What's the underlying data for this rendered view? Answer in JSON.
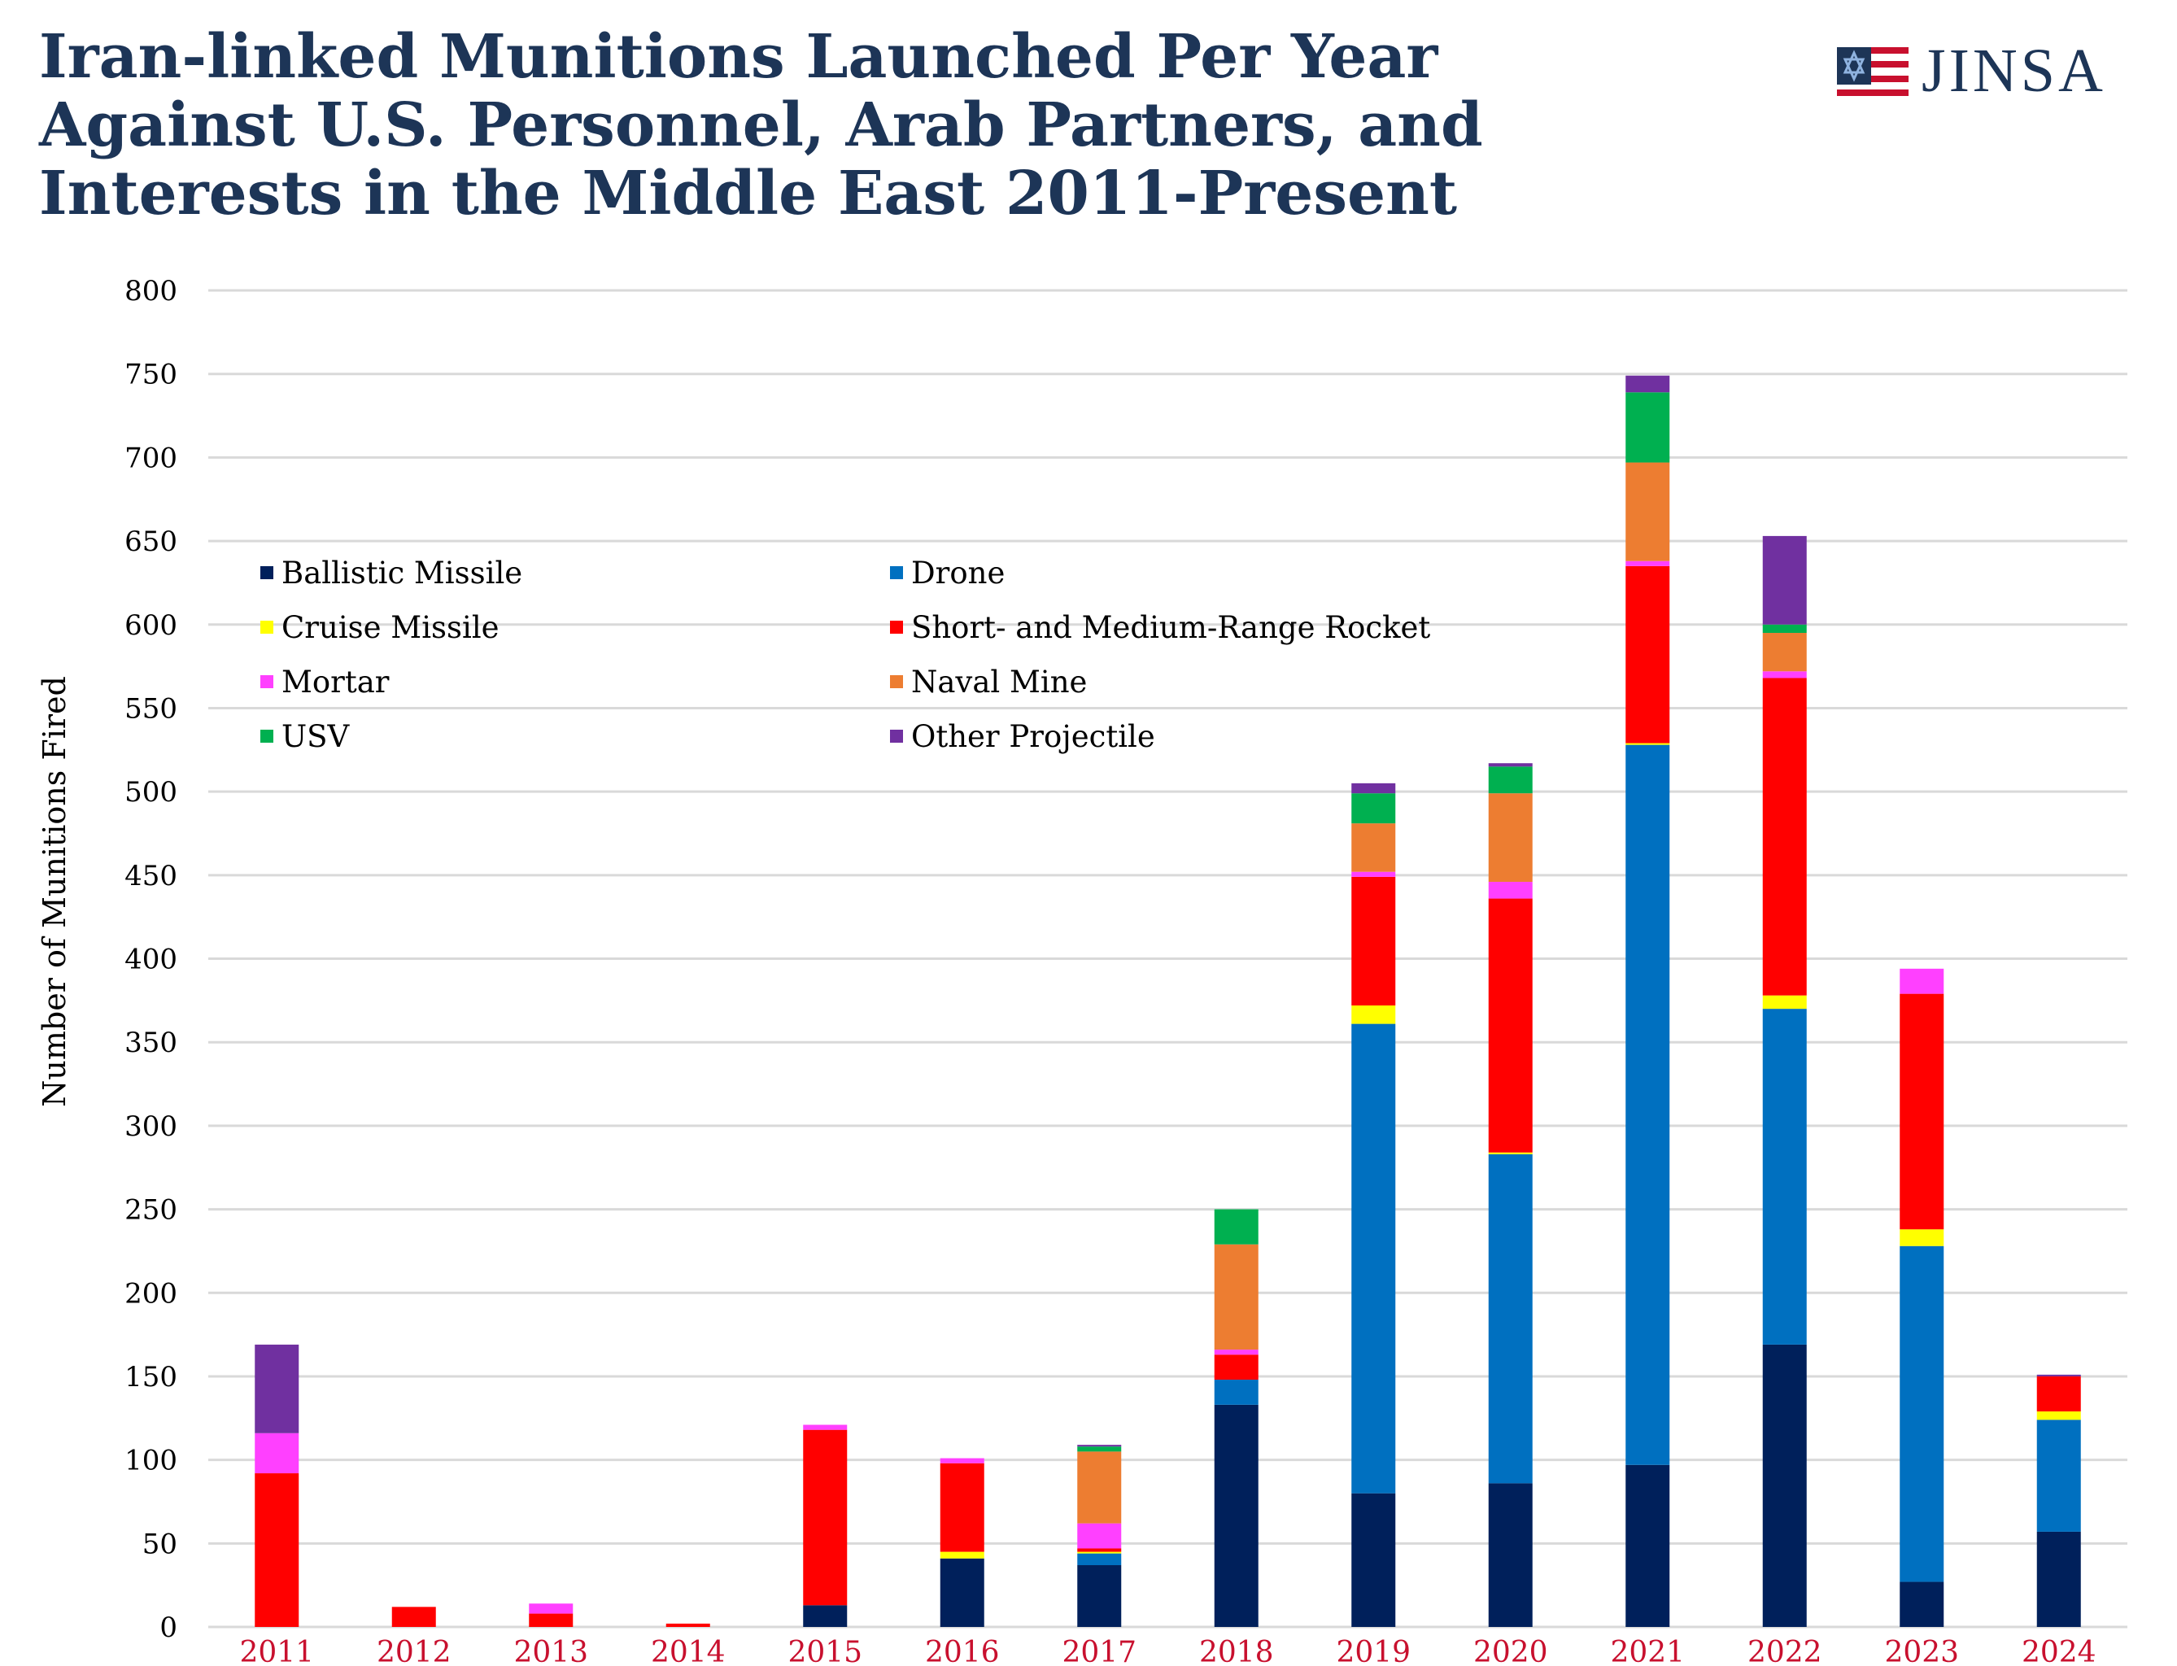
{
  "title_lines": [
    "Iran-linked Munitions Launched Per Year",
    "Against U.S. Personnel, Arab Partners, and",
    "Interests in the Middle East 2011-Present"
  ],
  "logo": {
    "text": "JINSA",
    "icon": "flag-star-icon"
  },
  "chart_data": {
    "type": "bar",
    "stacked": true,
    "title": "Iran-linked Munitions Launched Per Year Against U.S. Personnel, Arab Partners, and Interests in the Middle East 2011-Present",
    "xlabel": "",
    "ylabel": "Number of Munitions Fired",
    "ylim": [
      0,
      800
    ],
    "yticks": [
      0,
      50,
      100,
      150,
      200,
      250,
      300,
      350,
      400,
      450,
      500,
      550,
      600,
      650,
      700,
      750,
      800
    ],
    "grid": true,
    "legend_placement": "top-left",
    "categories": [
      "2011",
      "2012",
      "2013",
      "2014",
      "2015",
      "2016",
      "2017",
      "2018",
      "2019",
      "2020",
      "2021",
      "2022",
      "2023",
      "2024"
    ],
    "series": [
      {
        "name": "Ballistic Missile",
        "color": "#00205b",
        "values": [
          0,
          0,
          0,
          0,
          13,
          41,
          37,
          133,
          80,
          86,
          97,
          169,
          27,
          57
        ]
      },
      {
        "name": "Drone",
        "color": "#0070c0",
        "values": [
          0,
          0,
          0,
          0,
          0,
          0,
          7,
          15,
          281,
          197,
          431,
          201,
          201,
          67
        ]
      },
      {
        "name": "Cruise Missile",
        "color": "#ffff00",
        "values": [
          0,
          0,
          0,
          0,
          0,
          4,
          1,
          0,
          11,
          1,
          1,
          8,
          10,
          5
        ]
      },
      {
        "name": "Short- and Medium-Range Rocket",
        "color": "#ff0000",
        "values": [
          92,
          12,
          8,
          2,
          105,
          53,
          2,
          15,
          77,
          152,
          106,
          190,
          141,
          21
        ]
      },
      {
        "name": "Mortar",
        "color": "#ff40ff",
        "values": [
          24,
          0,
          6,
          0,
          3,
          3,
          15,
          3,
          3,
          10,
          3,
          4,
          15,
          0
        ]
      },
      {
        "name": "Naval Mine",
        "color": "#ed7d31",
        "values": [
          0,
          0,
          0,
          0,
          0,
          0,
          43,
          63,
          29,
          53,
          59,
          23,
          0,
          0
        ]
      },
      {
        "name": "USV",
        "color": "#00b050",
        "values": [
          0,
          0,
          0,
          0,
          0,
          0,
          3,
          21,
          18,
          16,
          42,
          5,
          0,
          0
        ]
      },
      {
        "name": "Other Projectile",
        "color": "#7030a0",
        "values": [
          53,
          0,
          0,
          0,
          0,
          0,
          1,
          0,
          6,
          2,
          10,
          53,
          0,
          1
        ]
      }
    ]
  }
}
